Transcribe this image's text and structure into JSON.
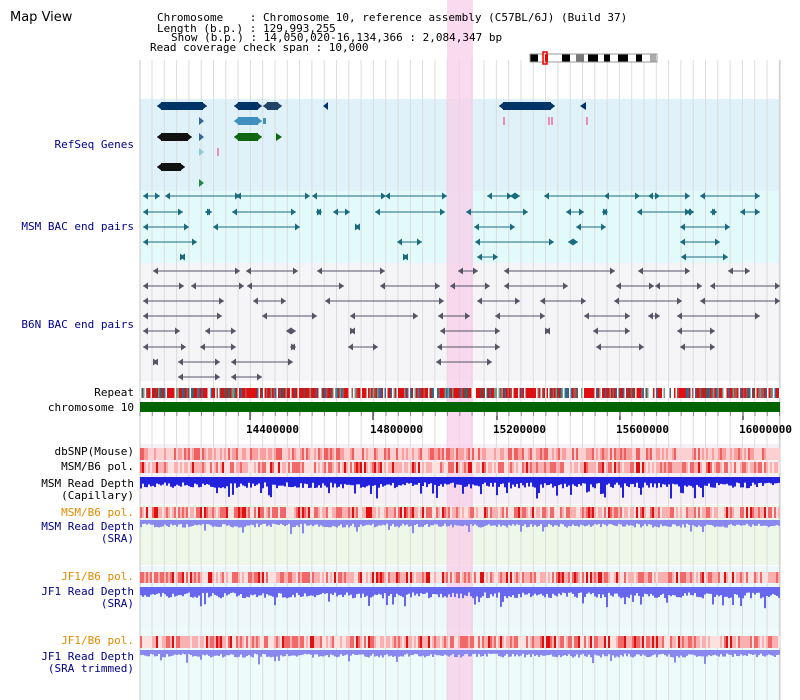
{
  "app": {
    "title": "Map View"
  },
  "info": {
    "chromosome": "Chromosome    : Chromosome 10, reference assembly (C57BL/6J) (Build 37)",
    "length": "Length (b.p.) : 129,993,255",
    "show": "Show (b.p.) : 14,050,020-16,134,366 : 2,084,347 bp",
    "coverage": "Read coverage check span : 10,000"
  },
  "tracks": {
    "refseq": "RefSeq Genes",
    "msm_bac": "MSM BAC end pairs",
    "b6n_bac": "B6N BAC end pairs",
    "repeat": "Repeat",
    "chromosome": "chromosome 10",
    "dbsnp": "dbSNP(Mouse)",
    "msm_b6_pol_1": "MSM/B6 pol.",
    "msm_depth_cap_1": "MSM Read Depth",
    "msm_depth_cap_2": "(Capillary)",
    "msm_b6_pol_2": "MSM/B6 pol.",
    "msm_depth_sra_1": "MSM Read Depth",
    "msm_depth_sra_2": "(SRA)",
    "jf1_pol_1": "JF1/B6 pol.",
    "jf1_depth_sra_1": "JF1 Read Depth",
    "jf1_depth_sra_2": "(SRA)",
    "jf1_pol_2": "JF1/B6 pol.",
    "jf1_depth_trim_1": "JF1 Read Depth",
    "jf1_depth_trim_2": "(SRA trimmed)"
  },
  "axis": {
    "ticks": [
      "14400000",
      "14800000",
      "15200000",
      "15600000",
      "16000000"
    ]
  },
  "colors": {
    "refseq_bg": "#dff1f9",
    "msm_bac_bg": "#e3fafa",
    "b6n_bac_bg": "#f5f5f8",
    "highlight": "#f8cde8",
    "chrom": "#006400",
    "label_blue": "#00008b",
    "label_orange": "#e08a00"
  }
}
